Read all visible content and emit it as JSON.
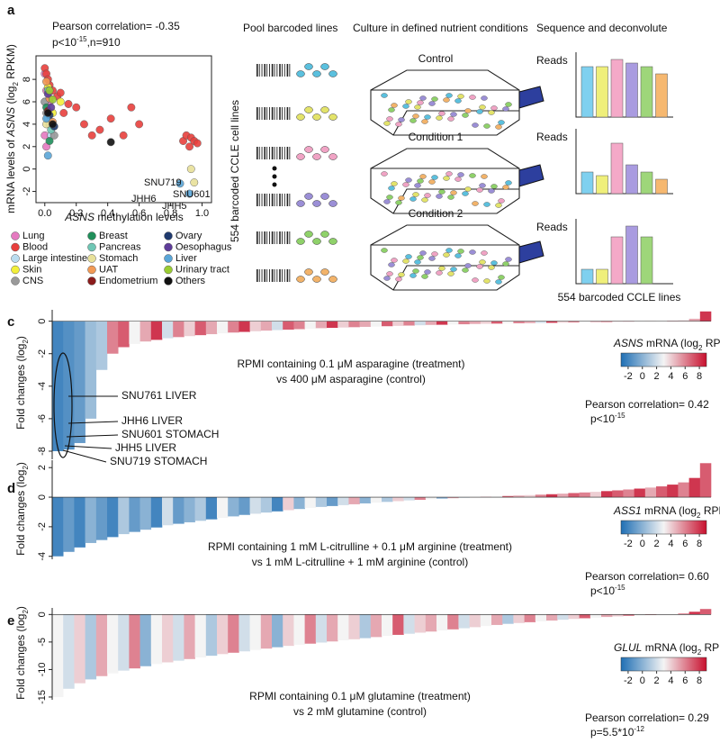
{
  "diagram": {
    "pool_title": "Pool barcoded lines",
    "culture_title": "Culture in defined nutrient conditions",
    "sequence_title": "Sequence and deconvolute",
    "cell_lines_label": "554 barcoded CCLE cell lines",
    "flasks": [
      "Control",
      "Condition 1",
      "Condition 2"
    ],
    "cell_colors": [
      "#5bc0de",
      "#e3e36a",
      "#f0a3c4",
      "#9b8fd6",
      "#8fd16a",
      "#f2b36a"
    ]
  },
  "chart_data": [
    {
      "type": "scatter",
      "panel": "a",
      "title_parts": [
        "Pearson correlation= -0.35"
      ],
      "subtitle_parts": [
        "p<10",
        "-15",
        ",n=910"
      ],
      "x_label_parts": [
        "ASNS",
        " methylation levels"
      ],
      "y_label_parts": [
        "mRNA levels of ",
        "ASNS",
        "  (log",
        "2",
        " RPKM)"
      ],
      "xlim": [
        -0.056,
        1.06
      ],
      "ylim": [
        -3,
        10.1
      ],
      "xticks": [
        {
          "value": 0,
          "label": "0.0"
        },
        0.2,
        0.4,
        0.6,
        0.8,
        {
          "value": 1,
          "label": "1.0"
        }
      ],
      "yticks": [
        -2,
        0,
        2,
        4,
        6,
        8
      ],
      "annotations": [
        "SNU719",
        "SNU601",
        "JHH6",
        "JHH5"
      ],
      "series": [
        {
          "name": "Lung",
          "color": "#e57ac0",
          "x": [
            0,
            0.01,
            0.02,
            0,
            0.03,
            0.01
          ],
          "values": [
            8.5,
            7,
            5,
            3,
            6,
            2
          ]
        },
        {
          "name": "Blood",
          "color": "#e8403d",
          "x": [
            0,
            0.01,
            0.02,
            0.03,
            0.05,
            0.08,
            0.12,
            0.2,
            0.25,
            0.3,
            0.35,
            0.42,
            0.5,
            0.55,
            0.6,
            0.88,
            0.9,
            0.93,
            0.95,
            0.92,
            0.97,
            0.1,
            0.15
          ],
          "values": [
            9,
            8.5,
            8,
            7.5,
            7,
            6.5,
            5,
            5.5,
            4,
            3,
            3.5,
            4.5,
            3,
            5.5,
            4,
            2.5,
            3,
            2.8,
            2.5,
            2,
            2.3,
            6.8,
            5.8
          ]
        },
        {
          "name": "Large intestine",
          "color": "#b9dcef",
          "x": [
            0,
            0.02,
            0.04
          ],
          "values": [
            6,
            4.5,
            3
          ]
        },
        {
          "name": "Skin",
          "color": "#f2ef3a",
          "x": [
            0.02,
            0.05,
            0.1
          ],
          "values": [
            7.3,
            5,
            6
          ]
        },
        {
          "name": "CNS",
          "color": "#9a9a9a",
          "x": [
            0,
            0.01,
            0.03,
            0.06
          ],
          "values": [
            6,
            5,
            4,
            3
          ]
        },
        {
          "name": "Breast",
          "color": "#1f8f5a",
          "x": [
            0.01,
            0.03
          ],
          "values": [
            5.5,
            2.5
          ]
        },
        {
          "name": "Pancreas",
          "color": "#6fc7b5",
          "x": [
            0.02,
            0.04
          ],
          "values": [
            7,
            3.5
          ]
        },
        {
          "name": "Stomach",
          "color": "#e8e19a",
          "x": [
            0.01,
            0.93,
            0.95
          ],
          "values": [
            4,
            0,
            -1.2
          ]
        },
        {
          "name": "UAT",
          "color": "#f29a55",
          "x": [
            0.01,
            0.03,
            0.05
          ],
          "values": [
            7.8,
            6.3,
            4.2
          ]
        },
        {
          "name": "Endometrium",
          "color": "#8b1c1c",
          "x": [
            0.02
          ],
          "values": [
            5.2
          ]
        },
        {
          "name": "Ovary",
          "color": "#1f3a6e",
          "x": [
            0.03,
            0.06
          ],
          "values": [
            4.8,
            3.8
          ]
        },
        {
          "name": "Oesophagus",
          "color": "#5e3c99",
          "x": [
            0.02,
            0.04
          ],
          "values": [
            6.7,
            5.5
          ]
        },
        {
          "name": "Liver",
          "color": "#5aa6d8",
          "x": [
            0.01,
            0.02,
            0.86,
            0.92
          ],
          "values": [
            4.5,
            1.2,
            -1.3,
            -2.2
          ]
        },
        {
          "name": "Urinary tract",
          "color": "#9acd32",
          "x": [
            0.03,
            0.05
          ],
          "values": [
            7,
            6.2
          ]
        },
        {
          "name": "Others",
          "color": "#111111",
          "x": [
            0.02,
            0.42,
            0.05
          ],
          "values": [
            5,
            2.4,
            4
          ]
        }
      ]
    },
    {
      "type": "bar",
      "y_label": "Reads",
      "values": [
        7,
        7,
        8,
        7.5,
        7,
        6
      ],
      "colors": [
        "#7fd0ef",
        "#efef7a",
        "#f4a9c8",
        "#a99be0",
        "#9ed67a",
        "#f6b870"
      ]
    },
    {
      "type": "bar",
      "y_label": "Reads",
      "values": [
        3,
        2.5,
        7,
        4,
        3,
        2
      ],
      "colors": [
        "#7fd0ef",
        "#efef7a",
        "#f4a9c8",
        "#a99be0",
        "#9ed67a",
        "#f6b870"
      ]
    },
    {
      "type": "bar",
      "y_label": "Reads",
      "x_label": "554 barcoded CCLE lines",
      "values": [
        2,
        2,
        6.5,
        8,
        6.5
      ],
      "colors": [
        "#7fd0ef",
        "#efef7a",
        "#f4a9c8",
        "#a99be0",
        "#9ed67a"
      ]
    },
    {
      "type": "waterfall",
      "panel": "c",
      "y_label_parts": [
        "Fold changes (log",
        "2",
        ")"
      ],
      "text_lines": [
        "RPMI containing 0.1 μM asparagine (treatment)",
        "vs 400 μM asparagine (control)"
      ],
      "ylim": [
        -8.5,
        0.7
      ],
      "yticks": [
        0,
        -2,
        -4,
        -6,
        -8
      ],
      "annotations": [
        "SNU761 LIVER",
        "JHH6 LIVER",
        "SNU601 STOMACH",
        "JHH5 LIVER",
        "SNU719 STOMACH"
      ],
      "colorbar": {
        "title_parts": [
          "ASNS",
          " mRNA (log",
          "2",
          " RPKM)"
        ],
        "ticks": [
          -2,
          0,
          2,
          4,
          6,
          8
        ],
        "lim": [
          -3,
          9
        ],
        "colors": [
          "#1f6fb4",
          "#f4f4f4",
          "#c8102e"
        ]
      },
      "stat_parts": [
        "Pearson correlation= 0.42"
      ],
      "p_parts": [
        "p<10",
        "-15"
      ],
      "values": [
        -8,
        -7.9,
        -7.5,
        -6,
        -3,
        -2,
        -1.6,
        -1.4,
        -1.25,
        -1.15,
        -1.05,
        -0.98,
        -0.92,
        -0.86,
        -0.8,
        -0.75,
        -0.7,
        -0.66,
        -0.62,
        -0.58,
        -0.55,
        -0.52,
        -0.49,
        -0.46,
        -0.43,
        -0.41,
        -0.39,
        -0.37,
        -0.35,
        -0.33,
        -0.31,
        -0.29,
        -0.27,
        -0.25,
        -0.23,
        -0.22,
        -0.2,
        -0.19,
        -0.17,
        -0.16,
        -0.15,
        -0.14,
        -0.13,
        -0.12,
        -0.11,
        -0.1,
        -0.09,
        -0.08,
        -0.07,
        -0.06,
        -0.05,
        -0.04,
        -0.03,
        -0.02,
        -0.01,
        0,
        0.02,
        0.05,
        0.15,
        0.6
      ],
      "expression": [
        -2,
        -1.5,
        -1,
        0.5,
        1,
        6,
        7,
        3,
        5,
        8,
        2,
        6,
        4,
        7,
        5,
        3,
        6,
        8,
        4,
        5,
        2,
        7,
        6,
        3,
        5,
        8,
        4,
        6,
        5,
        3,
        7,
        4,
        6,
        2,
        5,
        8,
        3,
        6,
        5,
        4,
        7,
        3,
        6,
        5,
        2,
        8,
        4,
        6,
        3,
        5,
        7,
        4,
        6,
        3,
        5,
        2,
        6,
        4,
        5,
        8
      ]
    },
    {
      "type": "waterfall",
      "panel": "d",
      "y_label_parts": [
        "Fold changes (log",
        "2",
        ")"
      ],
      "text_lines": [
        "RPMI containing 1 mM L-citrulline + 0.1 μM arginine (treatment)",
        "vs  1 mM L-citrulline + 1 mM arginine (control)"
      ],
      "ylim": [
        -4.2,
        2.5
      ],
      "yticks": [
        2,
        0,
        -2,
        -4
      ],
      "colorbar": {
        "title_parts": [
          "ASS1",
          " mRNA (log",
          "2",
          " RPKM)"
        ],
        "ticks": [
          -2,
          0,
          2,
          4,
          6,
          8
        ],
        "lim": [
          -3,
          9
        ],
        "colors": [
          "#1f6fb4",
          "#f4f4f4",
          "#c8102e"
        ]
      },
      "stat_parts": [
        "Pearson correlation= 0.60"
      ],
      "p_parts": [
        "p<10",
        "-15"
      ],
      "values": [
        -4,
        -3.7,
        -3.4,
        -3.1,
        -2.9,
        -2.7,
        -2.5,
        -2.35,
        -2.2,
        -2.05,
        -1.9,
        -1.8,
        -1.7,
        -1.6,
        -1.5,
        -1.4,
        -1.3,
        -1.2,
        -1.12,
        -1.04,
        -0.96,
        -0.88,
        -0.8,
        -0.73,
        -0.66,
        -0.6,
        -0.54,
        -0.48,
        -0.42,
        -0.37,
        -0.32,
        -0.27,
        -0.22,
        -0.18,
        -0.14,
        -0.1,
        -0.07,
        -0.04,
        -0.01,
        0.02,
        0.05,
        0.08,
        0.11,
        0.14,
        0.17,
        0.2,
        0.24,
        0.28,
        0.32,
        0.36,
        0.41,
        0.46,
        0.52,
        0.58,
        0.65,
        0.73,
        0.85,
        1.0,
        1.3,
        2.3
      ],
      "expression": [
        -2,
        -1,
        -2,
        0,
        -1,
        -2,
        1,
        -1,
        0,
        -2,
        2,
        -1,
        0,
        1,
        -2,
        3,
        0,
        -1,
        2,
        1,
        -2,
        4,
        0,
        3,
        1,
        -1,
        2,
        5,
        0,
        3,
        1,
        4,
        2,
        6,
        3,
        0,
        5,
        2,
        4,
        6,
        3,
        7,
        5,
        4,
        6,
        8,
        5,
        7,
        6,
        4,
        8,
        7,
        6,
        8,
        5,
        7,
        8,
        6,
        8,
        7
      ]
    },
    {
      "type": "waterfall",
      "panel": "e",
      "y_label_parts": [
        "Fold changes (log",
        "2",
        ")"
      ],
      "text_lines": [
        "RPMI containing 0.1 μM glutamine (treatment)",
        "vs 2 mM glutamine (control)"
      ],
      "ylim": [
        -15.5,
        1.2
      ],
      "yticks": [
        0,
        -5,
        -10,
        -15
      ],
      "colorbar": {
        "title_parts": [
          "GLUL",
          " mRNA (log",
          "2",
          " RPKM)"
        ],
        "ticks": [
          -2,
          0,
          2,
          4,
          6,
          8
        ],
        "lim": [
          -3,
          9
        ],
        "colors": [
          "#1f6fb4",
          "#f4f4f4",
          "#c8102e"
        ]
      },
      "stat_parts": [
        "Pearson correlation= 0.29"
      ],
      "p_parts": [
        "p=5.5*10",
        "-12"
      ],
      "values": [
        -15,
        -13.5,
        -12.5,
        -11.8,
        -11.2,
        -10.7,
        -10.2,
        -9.8,
        -9.4,
        -9,
        -8.7,
        -8.4,
        -8.1,
        -7.8,
        -7.5,
        -7.2,
        -6.95,
        -6.7,
        -6.45,
        -6.2,
        -5.95,
        -5.7,
        -5.5,
        -5.3,
        -5.1,
        -4.9,
        -4.7,
        -4.5,
        -4.3,
        -4.1,
        -3.9,
        -3.7,
        -3.5,
        -3.3,
        -3.1,
        -2.9,
        -2.7,
        -2.5,
        -2.3,
        -2.1,
        -1.9,
        -1.7,
        -1.55,
        -1.4,
        -1.25,
        -1.1,
        -0.95,
        -0.8,
        -0.68,
        -0.56,
        -0.45,
        -0.35,
        -0.26,
        -0.18,
        -0.1,
        -0.03,
        0.05,
        0.2,
        0.5,
        1.0
      ],
      "expression": [
        3,
        2,
        4,
        1,
        5,
        3,
        2,
        6,
        0,
        3,
        4,
        2,
        5,
        3,
        1,
        4,
        6,
        2,
        3,
        5,
        0,
        4,
        3,
        6,
        2,
        5,
        3,
        4,
        1,
        5,
        3,
        7,
        2,
        4,
        5,
        3,
        6,
        2,
        4,
        3,
        5,
        1,
        4,
        6,
        3,
        5,
        2,
        4,
        7,
        3,
        5,
        4,
        6,
        3,
        5,
        7,
        4,
        6,
        8,
        7
      ]
    }
  ]
}
